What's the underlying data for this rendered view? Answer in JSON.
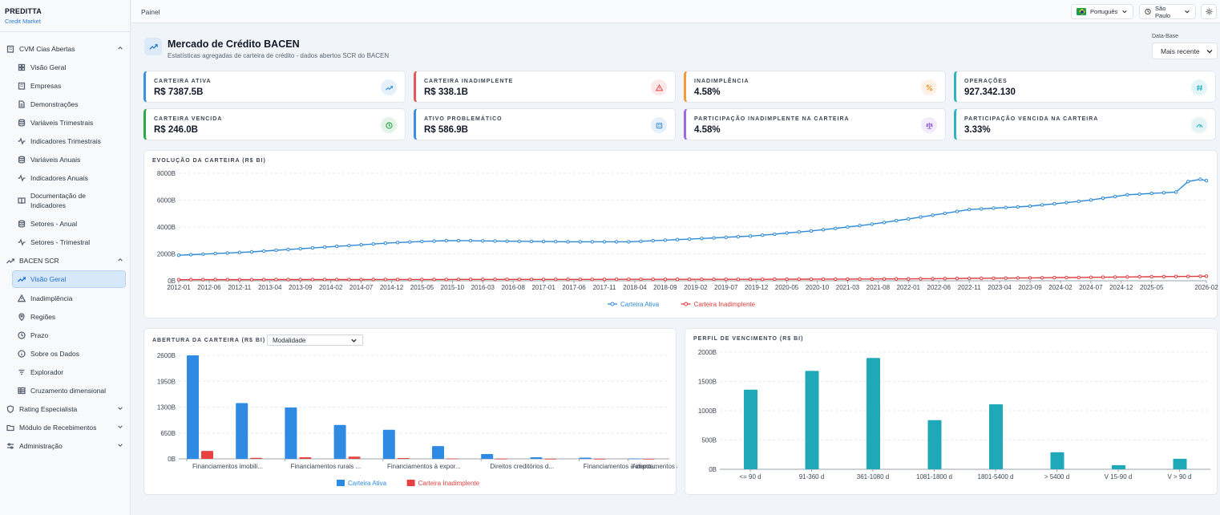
{
  "brand": {
    "name": "PREDITTA",
    "subtitle": "Credit Market"
  },
  "sidebar": {
    "groups": [
      {
        "label": "CVM Cias Abertas",
        "icon": "building-icon",
        "expanded": true,
        "items": [
          {
            "label": "Visão Geral",
            "icon": "grid-icon"
          },
          {
            "label": "Empresas",
            "icon": "building-icon"
          },
          {
            "label": "Demonstrações",
            "icon": "document-icon"
          },
          {
            "label": "Variáveis Trimestrais",
            "icon": "database-icon"
          },
          {
            "label": "Indicadores Trimestrais",
            "icon": "activity-icon"
          },
          {
            "label": "Variáveis Anuais",
            "icon": "database-icon"
          },
          {
            "label": "Indicadores Anuais",
            "icon": "activity-icon"
          },
          {
            "label": "Documentação de Indicadores",
            "icon": "book-icon"
          },
          {
            "label": "Setores - Anual",
            "icon": "database-icon"
          },
          {
            "label": "Setores - Trimestral",
            "icon": "activity-icon"
          }
        ]
      },
      {
        "label": "BACEN SCR",
        "icon": "trending-up-icon",
        "expanded": true,
        "items": [
          {
            "label": "Visão Geral",
            "icon": "trending-up-icon",
            "active": true
          },
          {
            "label": "Inadimplência",
            "icon": "warning-icon"
          },
          {
            "label": "Regiões",
            "icon": "map-pin-icon"
          },
          {
            "label": "Prazo",
            "icon": "clock-icon"
          },
          {
            "label": "Sobre os Dados",
            "icon": "info-icon"
          },
          {
            "label": "Explorador",
            "icon": "filter-icon"
          },
          {
            "label": "Cruzamento dimensional",
            "icon": "table-icon"
          }
        ]
      },
      {
        "label": "Rating Especialista",
        "icon": "shield-icon",
        "expanded": false,
        "items": []
      },
      {
        "label": "Módulo de Recebimentos",
        "icon": "folder-icon",
        "expanded": false,
        "items": []
      },
      {
        "label": "Administração",
        "icon": "sliders-icon",
        "expanded": false,
        "items": []
      }
    ]
  },
  "topbar": {
    "breadcrumb": "Painel",
    "language": "Português",
    "timezone": "São Paulo"
  },
  "header": {
    "title": "Mercado de Crédito BACEN",
    "subtitle": "Estatísticas agregadas de carteira de crédito - dados abertos SCR do BACEN",
    "date_base_label": "Data-Base",
    "date_base_value": "Mais recente"
  },
  "kpis": [
    {
      "label": "CARTEIRA ATIVA",
      "value": "R$ 7387.5B",
      "color": "#3b8fe0",
      "icon": "trending-up-icon"
    },
    {
      "label": "CARTEIRA INADIMPLENTE",
      "value": "R$ 338.1B",
      "color": "#e45757",
      "icon": "warning-icon"
    },
    {
      "label": "INADIMPLÊNCIA",
      "value": "4.58%",
      "color": "#f29a3a",
      "icon": "percent-icon"
    },
    {
      "label": "OPERAÇÕES",
      "value": "927.342.130",
      "color": "#2fb3c4",
      "icon": "hash-icon"
    },
    {
      "label": "CARTEIRA VENCIDA",
      "value": "R$ 246.0B",
      "color": "#2ba84a",
      "icon": "clock-icon"
    },
    {
      "label": "ATIVO PROBLEMÁTICO",
      "value": "R$ 586.9B",
      "color": "#3b8fe0",
      "icon": "building-icon"
    },
    {
      "label": "PARTICIPAÇÃO INADIMPLENTE NA CARTEIRA",
      "value": "4.58%",
      "color": "#9c6ade",
      "icon": "scale-icon"
    },
    {
      "label": "PARTICIPAÇÃO VENCIDA NA CARTEIRA",
      "value": "3.33%",
      "color": "#2fb3c4",
      "icon": "gauge-icon"
    }
  ],
  "evolution": {
    "title": "EVOLUÇÃO DA CARTEIRA (R$ BI)"
  },
  "breakdown": {
    "title": "ABERTURA DA CARTEIRA (R$ BI)",
    "dropdown_value": "Modalidade"
  },
  "maturity": {
    "title": "PERFIL DE VENCIMENTO (R$ BI)"
  },
  "chart_data": [
    {
      "type": "line",
      "title": "EVOLUÇÃO DA CARTEIRA (R$ BI)",
      "x_start": "2012-01",
      "x_end": "2026-02",
      "x_step_months": 2,
      "tick_labels": [
        "2012-01",
        "2012-06",
        "2012-11",
        "2013-04",
        "2013-09",
        "2014-02",
        "2014-07",
        "2014-12",
        "2015-05",
        "2015-10",
        "2016-03",
        "2016-08",
        "2017-01",
        "2017-06",
        "2017-11",
        "2018-04",
        "2018-09",
        "2019-02",
        "2019-07",
        "2019-12",
        "2020-05",
        "2020-10",
        "2021-03",
        "2021-08",
        "2022-01",
        "2022-06",
        "2022-11",
        "2023-04",
        "2023-09",
        "2024-02",
        "2024-07",
        "2024-12",
        "2025-05",
        "2026-02"
      ],
      "y_ticks": [
        "0B",
        "2000B",
        "4000B",
        "6000B",
        "8000B"
      ],
      "ylim": [
        0,
        8000
      ],
      "series": [
        {
          "name": "Carteira Ativa",
          "color": "#2e8ad8",
          "anchors": [
            [
              "2012-01",
              1900
            ],
            [
              "2013-01",
              2150
            ],
            [
              "2014-01",
              2500
            ],
            [
              "2015-01",
              2850
            ],
            [
              "2015-10",
              3000
            ],
            [
              "2016-06",
              2950
            ],
            [
              "2017-06",
              2900
            ],
            [
              "2018-03",
              2900
            ],
            [
              "2019-01",
              3100
            ],
            [
              "2019-12",
              3350
            ],
            [
              "2020-10",
              3750
            ],
            [
              "2021-06",
              4150
            ],
            [
              "2022-01",
              4600
            ],
            [
              "2022-11",
              5300
            ],
            [
              "2023-09",
              5550
            ],
            [
              "2024-06",
              5950
            ],
            [
              "2025-01",
              6400
            ],
            [
              "2025-09",
              6600
            ],
            [
              "2025-10",
              7300
            ],
            [
              "2026-01",
              7550
            ],
            [
              "2026-02",
              7450
            ]
          ]
        },
        {
          "name": "Carteira Inadimplente",
          "color": "#e03c3c",
          "anchors": [
            [
              "2012-01",
              80
            ],
            [
              "2016-01",
              100
            ],
            [
              "2020-01",
              110
            ],
            [
              "2022-01",
              140
            ],
            [
              "2024-01",
              230
            ],
            [
              "2026-02",
              338
            ]
          ]
        }
      ]
    },
    {
      "type": "bar",
      "title": "ABERTURA DA CARTEIRA (R$ BI)",
      "categories": [
        "Financiamentos imobili...",
        "",
        "Financiamentos rurais ...",
        "",
        "Financiamentos à expor...",
        "",
        "Direitos creditórios d...",
        "",
        "Financiamentos à impor...",
        "Adiantamentos a deposi..."
      ],
      "y_ticks": [
        "0B",
        "650B",
        "1300B",
        "1950B",
        "2600B"
      ],
      "ylim": [
        0,
        2600
      ],
      "series": [
        {
          "name": "Carteira Ativa",
          "color": "#2e8ae3",
          "values": [
            2600,
            1400,
            1290,
            850,
            730,
            320,
            120,
            40,
            30,
            10
          ]
        },
        {
          "name": "Carteira Inadimplente",
          "color": "#e84141",
          "values": [
            200,
            25,
            40,
            55,
            20,
            8,
            4,
            3,
            2,
            1
          ]
        }
      ]
    },
    {
      "type": "bar",
      "title": "PERFIL DE VENCIMENTO (R$ BI)",
      "categories": [
        "<= 90 d",
        "91-360 d",
        "361-1080 d",
        "1081-1800 d",
        "1801-5400 d",
        "> 5400 d",
        "V 15-90 d",
        "V > 90 d"
      ],
      "y_ticks": [
        "0B",
        "500B",
        "1000B",
        "1500B",
        "2000B"
      ],
      "ylim": [
        0,
        2000
      ],
      "series": [
        {
          "color": "#1fa8b8",
          "values": [
            1360,
            1680,
            1900,
            840,
            1110,
            290,
            70,
            180
          ]
        }
      ]
    }
  ]
}
